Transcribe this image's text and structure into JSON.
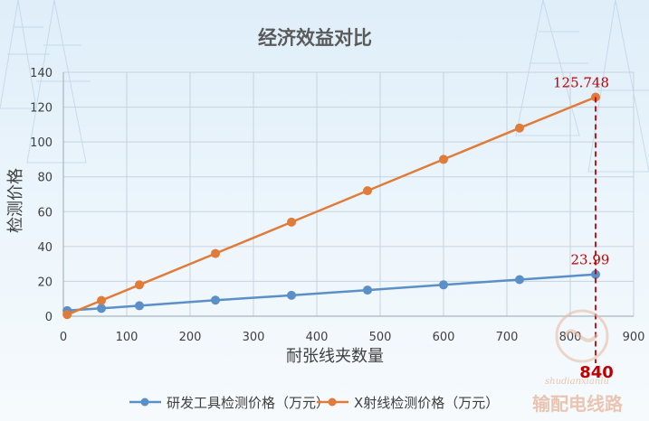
{
  "chart_data": {
    "type": "line",
    "title": "经济效益对比",
    "xlabel": "耐张线夹数量",
    "ylabel": "检测价格",
    "xlim": [
      0,
      900
    ],
    "ylim": [
      0,
      140
    ],
    "x_ticks": [
      "0",
      "100",
      "200",
      "300",
      "400",
      "500",
      "600",
      "700",
      "800",
      "900"
    ],
    "y_ticks": [
      "0",
      "20",
      "40",
      "60",
      "80",
      "100",
      "120",
      "140"
    ],
    "grid": true,
    "legend_position": "bottom",
    "series": [
      {
        "name": "研发工具检测价格（万元）",
        "color": "#5b8fc7",
        "x": [
          6,
          60,
          120,
          240,
          360,
          480,
          600,
          720,
          840
        ],
        "y": [
          3.2,
          4.5,
          6.0,
          9.2,
          12.0,
          15.0,
          18.0,
          21.0,
          23.99
        ]
      },
      {
        "name": "X射线检测价格（万元）",
        "color": "#e07b39",
        "x": [
          6,
          60,
          120,
          240,
          360,
          480,
          600,
          720,
          840
        ],
        "y": [
          0.9,
          9.0,
          18.0,
          36.0,
          54.0,
          72.0,
          90.0,
          108.0,
          125.748
        ]
      }
    ],
    "annotations": {
      "max_orange": "125.748",
      "max_blue": "23.99",
      "x_marker_value": 840,
      "x_marker_label": "840",
      "annotation_color": "#c00000"
    },
    "watermark": {
      "pinyin": "shudianxianlu",
      "chinese": "输配电线路"
    }
  }
}
